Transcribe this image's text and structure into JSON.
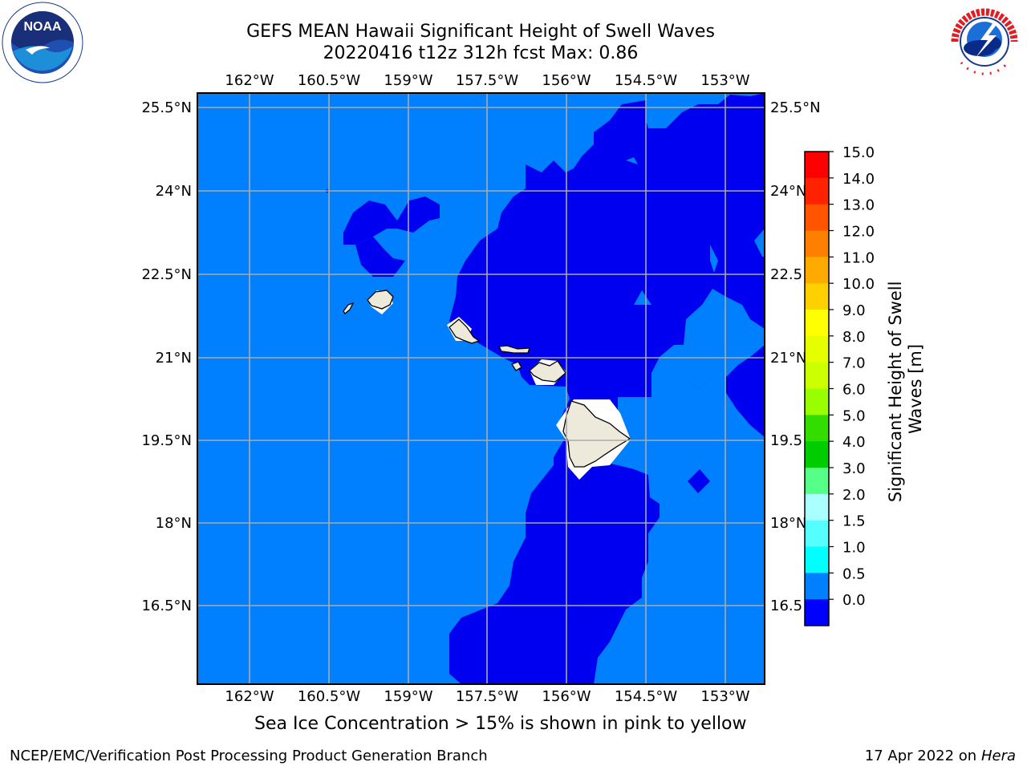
{
  "header": {
    "title_line1": "GEFS MEAN Hawaii Significant Height of Swell Waves",
    "title_line2": "20220416 t12z 312h fcst   Max: 0.86"
  },
  "logos": {
    "left": {
      "name": "noaa-logo",
      "text": "NOAA"
    },
    "right": {
      "name": "nws-logo",
      "text": "NATIONAL WEATHER SERVICE"
    }
  },
  "map": {
    "lon_labels": [
      "162°W",
      "160.5°W",
      "159°W",
      "157.5°W",
      "156°W",
      "154.5°W",
      "153°W"
    ],
    "lat_labels": [
      "25.5°N",
      "24°N",
      "22.5°N",
      "21°N",
      "19.5°N",
      "18°N",
      "16.5°N"
    ],
    "right_lat_labels": [
      "25.5°N",
      "24°N",
      "22.5",
      "21°N",
      "19.5",
      "18°N",
      "16.5"
    ],
    "colors": {
      "ocean_light": "#0080ff",
      "ocean_dark": "#0000f0",
      "land": "#eeeadb",
      "grid": "#aaaaaa"
    }
  },
  "colorbar": {
    "title_line1": "Significant Height of Swell",
    "title_line2": "Waves [m]",
    "ticks": [
      "15.0",
      "14.0",
      "13.0",
      "12.0",
      "11.0",
      "10.0",
      "9.0",
      "8.0",
      "7.0",
      "6.0",
      "5.0",
      "4.0",
      "3.0",
      "2.0",
      "1.5",
      "1.0",
      "0.5",
      "0.0"
    ],
    "colors_top_to_bottom": [
      "#ff0000",
      "#ff2200",
      "#ff5500",
      "#ff8000",
      "#ffaa00",
      "#ffd000",
      "#ffff00",
      "#e6ff00",
      "#ccff00",
      "#99ff00",
      "#33dd00",
      "#00cc00",
      "#55ff88",
      "#aaffff",
      "#55ffff",
      "#00ffff",
      "#0080ff",
      "#0000ff"
    ]
  },
  "footer": {
    "caption": "Sea Ice Concentration > 15% is shown in pink to yellow",
    "credit": "NCEP/EMC/Verification Post Processing Product Generation Branch",
    "date": "17 Apr 2022 on ",
    "machine": "Hera"
  }
}
